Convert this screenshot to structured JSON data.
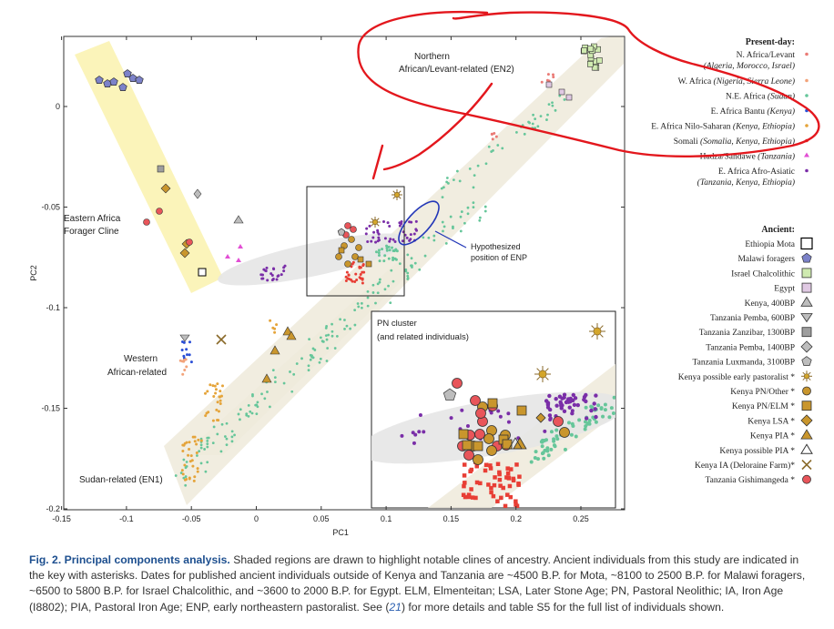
{
  "figure": {
    "x_axis_label": "PC1",
    "y_axis_label": "PC2",
    "x_ticks": [
      "-0.15",
      "-0.1",
      "-0.05",
      "0",
      "0.05",
      "0.1",
      "0.15",
      "0.2",
      "0.25"
    ],
    "y_ticks": [
      "0",
      "-0.05",
      "-0.1",
      "-0.15",
      "-0.2"
    ],
    "region_labels": {
      "northern": [
        "Northern",
        "African/Levant-related (EN2)"
      ],
      "eastern": [
        "Eastern Africa",
        "Forager Cline"
      ],
      "western": [
        "Western",
        "African-related"
      ],
      "sudan": "Sudan-related (EN1)",
      "enp": [
        "Hypothesized",
        "position of ENP"
      ]
    },
    "inset_title": [
      "PN cluster",
      "(and related individuals)"
    ]
  },
  "legend": {
    "present_title": "Present-day:",
    "present": [
      {
        "label": "N. Africa/Levant",
        "sub": "(Algeria, Morocco, Israel)",
        "color": "#ea7b76",
        "shape": "dot"
      },
      {
        "label": "W. Africa",
        "sub": "(Nigeria, Sierra Leone)",
        "color": "#f2a37a",
        "shape": "dot",
        "inline_sub": true
      },
      {
        "label": "N.E. Africa",
        "sub": "(Sudan)",
        "color": "#66c69a",
        "shape": "dot",
        "inline_sub": true
      },
      {
        "label": "E. Africa Bantu",
        "sub": "(Kenya)",
        "color": "#2b4fd6",
        "shape": "dot",
        "inline_sub": true
      },
      {
        "label": "E. Africa Nilo-Saharan",
        "sub": "(Kenya, Ethiopia)",
        "color": "#e5a43a",
        "shape": "dot",
        "inline_sub": true
      },
      {
        "label": "Somali",
        "sub": "(Somalia, Kenya, Ethiopia)",
        "color": "#e83e35",
        "shape": "dot",
        "inline_sub": true
      },
      {
        "label": "Hadza/Sandawe",
        "sub": "(Tanzania)",
        "color": "#e24fd4",
        "shape": "tri",
        "inline_sub": true
      },
      {
        "label": "E. Africa Afro-Asiatic",
        "sub": "(Tanzania, Kenya, Ethiopia)",
        "color": "#7a2ea8",
        "shape": "dot"
      }
    ],
    "ancient_title": "Ancient:",
    "ancient": [
      {
        "label": "Ethiopia Mota",
        "shape": "square-open"
      },
      {
        "label": "Malawi foragers",
        "shape": "pentagon",
        "color": "#7c82c9"
      },
      {
        "label": "Israel Chalcolithic",
        "shape": "square",
        "color": "#cfeab0"
      },
      {
        "label": "Egypt",
        "shape": "square",
        "color": "#e0c9e3"
      },
      {
        "label": "Kenya, 400BP",
        "shape": "triangle",
        "color": "#bdbdbd"
      },
      {
        "label": "Tanzania Pemba, 600BP",
        "shape": "triangle-down",
        "color": "#bdbdbd"
      },
      {
        "label": "Tanzania Zanzibar, 1300BP",
        "shape": "square",
        "color": "#9e9e9e"
      },
      {
        "label": "Tanzania Pemba, 1400BP",
        "shape": "diamond",
        "color": "#bdbdbd"
      },
      {
        "label": "Tanzania Luxmanda, 3100BP",
        "shape": "pentagon",
        "color": "#bdbdbd"
      },
      {
        "label": "Kenya possible early pastoralist *",
        "shape": "sun",
        "color": "#d4a62a"
      },
      {
        "label": "Kenya PN/Other *",
        "shape": "circle",
        "color": "#c9962d"
      },
      {
        "label": "Kenya PN/ELM *",
        "shape": "square",
        "color": "#c9962d"
      },
      {
        "label": "Kenya LSA *",
        "shape": "diamond",
        "color": "#c9962d"
      },
      {
        "label": "Kenya PIA *",
        "shape": "triangle",
        "color": "#c9962d"
      },
      {
        "label": "Kenya possible PIA *",
        "shape": "triangle-open",
        "color": "#c9962d"
      },
      {
        "label": "Kenya IA (Deloraine Farm)*",
        "shape": "x",
        "color": "#8a6a2a"
      },
      {
        "label": "Tanzania Gishimangeda *",
        "shape": "circle",
        "color": "#e8555a"
      }
    ]
  },
  "caption": {
    "heading": "Fig. 2. Principal components analysis.",
    "body_1": "Shaded regions are drawn to highlight notable clines of ancestry. Ancient individuals from this study are indicated in the key with asterisks. Dates for published ancient individuals outside of Kenya and Tanzania are ~4500 B.P. for Mota, ~8100 to 2500 B.P. for Malawi foragers, ~6500 to 5800 B.P. for Israel Chalcolithic, and ~3600 to 2000 B.P. for Egypt. ELM, Elmenteitan; LSA, Later Stone Age; PN, Pastoral Neolithic; IA, Iron Age (I8802); PIA, Pastoral Iron Age; ENP, early northeastern pastoralist. See (",
    "ref": "21",
    "body_2": ") for more details and table S5 for the full list of individuals shown."
  },
  "colors": {
    "clines_tan": "#eeeadb",
    "forager_yellow": "#fbf3b6",
    "grey_cline": "#e6e6e6",
    "annotation_red": "#e3171d",
    "enp_blue": "#2337b8"
  }
}
